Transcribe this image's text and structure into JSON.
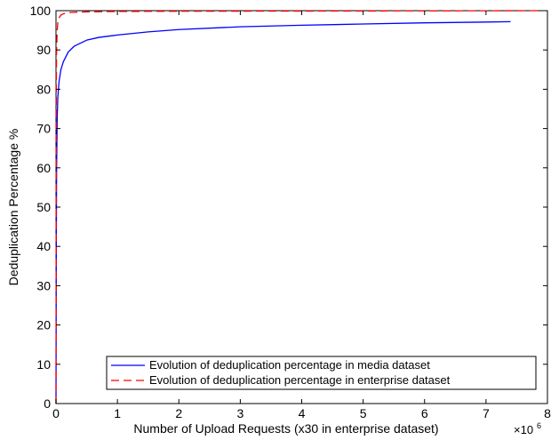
{
  "chart_data": {
    "type": "line",
    "title": "",
    "xlabel": "Number of Upload Requests (x30 in enterprise dataset)",
    "ylabel": "Deduplication Percentage %",
    "x_multiplier_base": "×10",
    "x_multiplier_exp": "6",
    "xlim": [
      0,
      8
    ],
    "ylim": [
      0,
      100
    ],
    "xticks": [
      0,
      1,
      2,
      3,
      4,
      5,
      6,
      7,
      8
    ],
    "yticks": [
      0,
      10,
      20,
      30,
      40,
      50,
      60,
      70,
      80,
      90,
      100
    ],
    "grid": false,
    "legend_position": "bottom-right",
    "series": [
      {
        "name": "Evolution of deduplication percentage in media dataset",
        "color": "#0000ff",
        "dash": "solid",
        "x": [
          0,
          0.005,
          0.01,
          0.02,
          0.03,
          0.05,
          0.08,
          0.12,
          0.2,
          0.3,
          0.5,
          0.7,
          1.0,
          1.5,
          2.0,
          3.0,
          4.0,
          5.0,
          6.0,
          7.0,
          7.4
        ],
        "y": [
          0,
          40,
          60,
          73,
          78,
          82,
          85,
          87,
          89.5,
          91,
          92.5,
          93.2,
          93.8,
          94.6,
          95.2,
          95.9,
          96.3,
          96.6,
          96.9,
          97.1,
          97.2
        ]
      },
      {
        "name": "Evolution of deduplication percentage in enterprise dataset",
        "color": "#ff0000",
        "dash": "dashed",
        "x": [
          0,
          0.005,
          0.01,
          0.02,
          0.03,
          0.05,
          0.08,
          0.12,
          0.2,
          0.3,
          0.5,
          1.0,
          2.0,
          4.0,
          6.0,
          7.9
        ],
        "y": [
          0,
          80,
          90,
          95,
          97,
          98.2,
          98.9,
          99.2,
          99.5,
          99.6,
          99.7,
          99.8,
          99.85,
          99.9,
          99.95,
          100
        ]
      }
    ]
  }
}
